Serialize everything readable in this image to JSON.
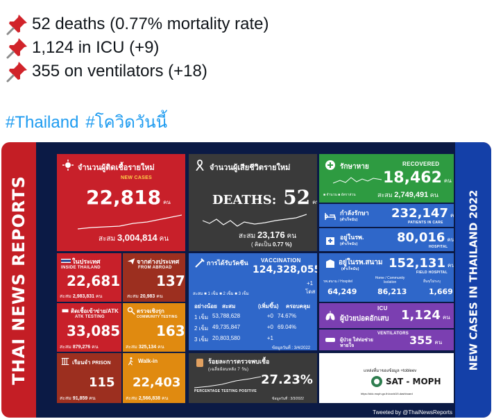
{
  "tweet": {
    "lines": [
      {
        "text": "52 deaths (0.77% mortality rate)"
      },
      {
        "text": "1,124 in ICU (+9)"
      },
      {
        "text": "355 on ventilators (+18)"
      }
    ],
    "hashtags": [
      "#Thailand",
      "#โควิดวันนี้"
    ]
  },
  "infographic": {
    "side_left": "THAI NEWS REPORTS",
    "side_right": "NEW CASES IN THAILAND 2022",
    "new_cases": {
      "title_th": "จำนวนผู้ติดเชื้อรายใหม่",
      "label": "NEW CASES",
      "value": "22,818",
      "unit": "คน",
      "cum_label": "สะสม",
      "cum_value": "3,004,814",
      "cum_unit": "คน"
    },
    "deaths": {
      "title_th": "จำนวนผู้เสียชีวิตรายใหม่",
      "label": "DEATHS:",
      "value": "52",
      "unit": "คน",
      "cum_label": "สะสม",
      "cum_value": "23,176",
      "cum_unit": "คน",
      "rate_label": "( คิดเป็น",
      "rate_value": "0.77 %)"
    },
    "recovered": {
      "title_th": "รักษาหาย",
      "label": "RECOVERED",
      "value": "18,462",
      "unit": "คน",
      "legend": "■ จำนวน ■ อัตราส่วน",
      "cum_label": "สะสม",
      "cum_value": "2,749,491",
      "cum_unit": "คน"
    },
    "in_care": {
      "title_th": "กำลังรักษา",
      "sub_th": "(ต่ำเร็จนับ)",
      "value": "232,147",
      "unit": "คน",
      "label": "PATIENTS IN CARE"
    },
    "hospital": {
      "title_th": "อยู่ในรพ.",
      "sub_th": "(ต่ำเร็จนับ)",
      "value": "80,016",
      "unit": "คน",
      "label": "HOSPITAL"
    },
    "inside": {
      "title_th": "ในประเทศ",
      "label": "INSIDE THAILAND",
      "value": "22,681",
      "cum_label": "สะสม",
      "cum_value": "2,983,831",
      "cum_unit": "คน"
    },
    "abroad": {
      "title_th": "จากต่างประเทศ",
      "label": "FROM ABROAD",
      "value": "137",
      "cum_label": "สะสม",
      "cum_value": "20,983",
      "cum_unit": "คน"
    },
    "vaccination": {
      "title_th": "การได้รับวัคซีน",
      "label": "VACCINATION",
      "total": "124,328,055",
      "total_plus": "+1",
      "total_unit": "โดส",
      "legend": "สะสม ■ 1 เข็ม ■ 2 เข็ม ■ 3 เข็ม",
      "headers": [
        "อย่างน้อย",
        "สะสม",
        "(เพิ่มขึ้น)",
        "ครอบคลุม"
      ],
      "rows": [
        {
          "dose": "1 เข็ม",
          "cum": "53,788,628",
          "inc": "+0",
          "cov": "74.67%"
        },
        {
          "dose": "2 เข็ม",
          "cum": "49,735,847",
          "inc": "+0",
          "cov": "69.04%"
        },
        {
          "dose": "3 เข็ม",
          "cum": "20,803,580",
          "inc": "+1",
          "cov": ""
        }
      ],
      "date": "ข้อมูลวันที่ : 3/4/2022"
    },
    "field_hospital": {
      "title_th": "อยู่ในรพ.สนาม",
      "sub_th": "(ต่ำเร็จนับ)",
      "value": "152,131",
      "unit": "คน",
      "label": "FIELD HOSPITAL",
      "cols": [
        {
          "head": "รพ.สนาม / Hospitel",
          "val": "64,249"
        },
        {
          "head": "Home / Community Isolation",
          "val": "86,213"
        },
        {
          "head": "อื่นๆ/ไม่ระบุ",
          "val": "1,669"
        }
      ]
    },
    "icu": {
      "label": "ICU",
      "title_th": "ผู้ป่วยปอดอักเสบ",
      "value": "1,124",
      "unit": "คน"
    },
    "ventilators": {
      "label": "VENTILATORS",
      "title_th": "ผู้ป่วย ใส่ท่อช่วยหายใจ",
      "value": "355",
      "unit": "คน"
    },
    "atk": {
      "title_th": "ติดเชื้อเข้าข่าย/ATK",
      "label": "ATK TESTING",
      "value": "33,085",
      "cum_label": "สะสม",
      "cum_value": "879,276",
      "cum_unit": "คน"
    },
    "community": {
      "title_th": "ตรวจเชิงรุก",
      "label": "COMMUNITY TESTING",
      "value": "163",
      "cum_label": "สะสม",
      "cum_value": "325,134",
      "cum_unit": "คน"
    },
    "prison": {
      "title_th": "เรือนจำ",
      "label": "PRISON",
      "value": "115",
      "cum_label": "สะสม",
      "cum_value": "91,859",
      "cum_unit": "คน"
    },
    "walkin": {
      "label": "Walk-in",
      "value": "22,403",
      "cum_label": "สะสม",
      "cum_value": "2,566,838",
      "cum_unit": "คน"
    },
    "positive": {
      "title_th": "ร้อยละการตรวจพบเชื้อ",
      "sub_th": "(เฉลี่ยย้อนหลัง 7 วัน)",
      "value": "27.23%",
      "label": "PERCENTAGE TESTING POSITIVE",
      "date": "ข้อมูลวันที่ : 3/3/2022"
    },
    "source": {
      "title_th": "แหล่งที่มาของข้อมูล",
      "partner": "+tobleev",
      "brand": "SAT - MOPH",
      "url": "https://ddc.moph.go.th/covid19-dashboard"
    },
    "footer": "Tweeted by @ThaiNewsReports",
    "colors": {
      "red": "#c8202a",
      "grey": "#3a3a3a",
      "green": "#2e9b41",
      "blue": "#2f67c9",
      "purple": "#7b3fb1",
      "orange": "#e08a10",
      "brown": "#9c2f1f"
    }
  }
}
